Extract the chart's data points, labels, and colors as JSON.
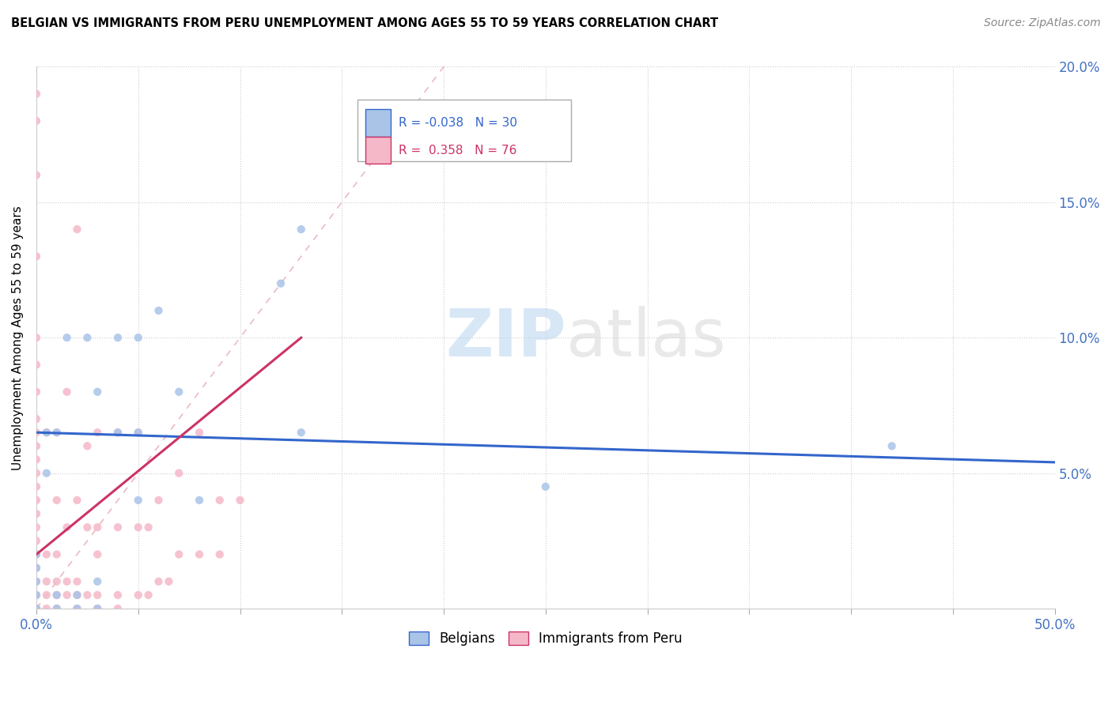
{
  "title": "BELGIAN VS IMMIGRANTS FROM PERU UNEMPLOYMENT AMONG AGES 55 TO 59 YEARS CORRELATION CHART",
  "source_text": "Source: ZipAtlas.com",
  "ylabel": "Unemployment Among Ages 55 to 59 years",
  "watermark_zip": "ZIP",
  "watermark_atlas": "atlas",
  "xlim": [
    0.0,
    0.5
  ],
  "ylim": [
    0.0,
    0.2
  ],
  "xticks": [
    0.0,
    0.05,
    0.1,
    0.15,
    0.2,
    0.25,
    0.3,
    0.35,
    0.4,
    0.45,
    0.5
  ],
  "yticks": [
    0.0,
    0.05,
    0.1,
    0.15,
    0.2
  ],
  "belgian_R": -0.038,
  "belgian_N": 30,
  "peru_R": 0.358,
  "peru_N": 76,
  "belgian_color": "#aac4e8",
  "peru_color": "#f5b8c8",
  "belgian_line_color": "#3366cc",
  "peru_line_color": "#cc3366",
  "ref_line_color": "#e8b4b8",
  "background_color": "#ffffff",
  "belgian_x": [
    0.0,
    0.0,
    0.0,
    0.0,
    0.0,
    0.005,
    0.005,
    0.01,
    0.01,
    0.01,
    0.015,
    0.02,
    0.02,
    0.025,
    0.03,
    0.03,
    0.04,
    0.04,
    0.05,
    0.05,
    0.06,
    0.07,
    0.08,
    0.13,
    0.25,
    0.42,
    0.12,
    0.03,
    0.05,
    0.13
  ],
  "belgian_y": [
    0.0,
    0.005,
    0.01,
    0.015,
    0.02,
    0.05,
    0.065,
    0.0,
    0.005,
    0.065,
    0.1,
    0.0,
    0.005,
    0.1,
    0.0,
    0.08,
    0.065,
    0.1,
    0.04,
    0.1,
    0.11,
    0.08,
    0.04,
    0.14,
    0.045,
    0.06,
    0.12,
    0.01,
    0.065,
    0.065
  ],
  "peru_x": [
    0.0,
    0.0,
    0.0,
    0.0,
    0.0,
    0.0,
    0.0,
    0.0,
    0.0,
    0.0,
    0.0,
    0.0,
    0.0,
    0.0,
    0.0,
    0.0,
    0.0,
    0.0,
    0.0,
    0.0,
    0.0,
    0.0,
    0.0,
    0.0,
    0.0,
    0.0,
    0.0,
    0.0,
    0.0,
    0.005,
    0.005,
    0.005,
    0.005,
    0.005,
    0.01,
    0.01,
    0.01,
    0.01,
    0.01,
    0.01,
    0.015,
    0.015,
    0.015,
    0.015,
    0.02,
    0.02,
    0.02,
    0.02,
    0.02,
    0.025,
    0.025,
    0.025,
    0.03,
    0.03,
    0.03,
    0.03,
    0.03,
    0.04,
    0.04,
    0.04,
    0.04,
    0.05,
    0.05,
    0.05,
    0.055,
    0.055,
    0.06,
    0.06,
    0.065,
    0.07,
    0.07,
    0.08,
    0.08,
    0.09,
    0.09,
    0.1
  ],
  "peru_y": [
    0.0,
    0.0,
    0.0,
    0.0,
    0.0,
    0.0,
    0.0,
    0.0,
    0.005,
    0.01,
    0.015,
    0.02,
    0.025,
    0.03,
    0.035,
    0.04,
    0.045,
    0.05,
    0.055,
    0.06,
    0.065,
    0.07,
    0.08,
    0.09,
    0.1,
    0.13,
    0.16,
    0.18,
    0.19,
    0.0,
    0.005,
    0.01,
    0.02,
    0.065,
    0.0,
    0.005,
    0.01,
    0.02,
    0.04,
    0.065,
    0.005,
    0.01,
    0.03,
    0.08,
    0.0,
    0.005,
    0.01,
    0.04,
    0.14,
    0.005,
    0.03,
    0.06,
    0.0,
    0.005,
    0.02,
    0.03,
    0.065,
    0.0,
    0.005,
    0.03,
    0.065,
    0.005,
    0.03,
    0.065,
    0.005,
    0.03,
    0.01,
    0.04,
    0.01,
    0.02,
    0.05,
    0.02,
    0.065,
    0.02,
    0.04,
    0.04
  ],
  "belgian_trend_x": [
    0.0,
    0.5
  ],
  "belgian_trend_y": [
    0.065,
    0.054
  ],
  "peru_trend_x": [
    0.0,
    0.13
  ],
  "peru_trend_y": [
    0.02,
    0.1
  ]
}
